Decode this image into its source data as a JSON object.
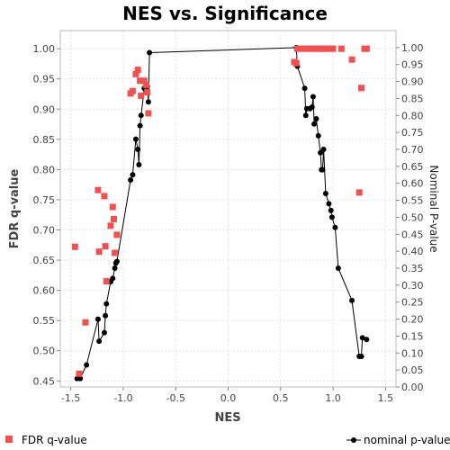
{
  "chart_data": {
    "type": "scatter",
    "title": "NES vs. Significance",
    "xlabel": "NES",
    "ylabel_left": "FDR q-value",
    "ylabel_right": "Nominal P-value",
    "xlim": [
      -1.6,
      1.6
    ],
    "ylim_left": [
      0.44,
      1.03
    ],
    "ylim_right": [
      0.0,
      1.05
    ],
    "x_ticks": [
      "-1.5",
      "-1.0",
      "-0.5",
      "0.0",
      "0.5",
      "1.0",
      "1.5"
    ],
    "y_left_ticks": [
      "0.45",
      "0.50",
      "0.55",
      "0.60",
      "0.65",
      "0.70",
      "0.75",
      "0.80",
      "0.85",
      "0.90",
      "0.95",
      "1.00"
    ],
    "y_right_ticks": [
      "0.00",
      "0.05",
      "0.10",
      "0.15",
      "0.20",
      "0.25",
      "0.30",
      "0.35",
      "0.40",
      "0.45",
      "0.50",
      "0.55",
      "0.60",
      "0.65",
      "0.70",
      "0.75",
      "0.80",
      "0.85",
      "0.90",
      "0.95",
      "1.00"
    ],
    "grid": true,
    "legend": "bottom",
    "series": [
      {
        "name": "FDR q-value",
        "axis": "left",
        "color": "#f05050",
        "marker": "square",
        "points": [
          [
            -1.46,
            0.672
          ],
          [
            -1.42,
            0.462
          ],
          [
            -1.36,
            0.547
          ],
          [
            -1.24,
            0.766
          ],
          [
            -1.23,
            0.664
          ],
          [
            -1.18,
            0.756
          ],
          [
            -1.17,
            0.673
          ],
          [
            -1.16,
            0.615
          ],
          [
            -1.12,
            0.707
          ],
          [
            -1.1,
            0.738
          ],
          [
            -1.09,
            0.718
          ],
          [
            -1.08,
            0.662
          ],
          [
            -1.06,
            0.692
          ],
          [
            -0.93,
            0.926
          ],
          [
            -0.91,
            0.93
          ],
          [
            -0.88,
            0.958
          ],
          [
            -0.86,
            0.965
          ],
          [
            -0.84,
            0.947
          ],
          [
            -0.83,
            0.922
          ],
          [
            -0.8,
            0.947
          ],
          [
            -0.78,
            0.94
          ],
          [
            -0.77,
            0.928
          ],
          [
            -0.76,
            0.893
          ],
          [
            0.63,
            0.978
          ],
          [
            0.65,
            0.976
          ],
          [
            0.66,
            1.0
          ],
          [
            0.7,
            1.0
          ],
          [
            0.74,
            1.0
          ],
          [
            0.78,
            1.0
          ],
          [
            0.8,
            1.0
          ],
          [
            0.84,
            1.0
          ],
          [
            0.86,
            1.0
          ],
          [
            0.88,
            1.0
          ],
          [
            0.9,
            1.0
          ],
          [
            0.93,
            1.0
          ],
          [
            0.96,
            1.0
          ],
          [
            0.98,
            1.0
          ],
          [
            1.0,
            1.0
          ],
          [
            1.08,
            1.0
          ],
          [
            1.18,
            0.982
          ],
          [
            1.25,
            0.762
          ],
          [
            1.27,
            0.935
          ],
          [
            1.3,
            1.0
          ],
          [
            1.32,
            1.0
          ]
        ]
      },
      {
        "name": "nominal p-value",
        "axis": "right",
        "color": "#000000",
        "marker": "circle",
        "points": [
          [
            -1.44,
            0.025
          ],
          [
            -1.41,
            0.025
          ],
          [
            -1.35,
            0.065
          ],
          [
            -1.24,
            0.2
          ],
          [
            -1.23,
            0.135
          ],
          [
            -1.18,
            0.16
          ],
          [
            -1.17,
            0.21
          ],
          [
            -1.16,
            0.245
          ],
          [
            -1.12,
            0.31
          ],
          [
            -1.1,
            0.32
          ],
          [
            -1.08,
            0.35
          ],
          [
            -1.07,
            0.365
          ],
          [
            -1.06,
            0.37
          ],
          [
            -0.93,
            0.61
          ],
          [
            -0.91,
            0.625
          ],
          [
            -0.88,
            0.73
          ],
          [
            -0.86,
            0.7
          ],
          [
            -0.85,
            0.655
          ],
          [
            -0.84,
            0.77
          ],
          [
            -0.83,
            0.8
          ],
          [
            -0.8,
            0.88
          ],
          [
            -0.77,
            0.885
          ],
          [
            -0.76,
            0.84
          ],
          [
            -0.75,
            0.985
          ],
          [
            0.65,
            1.0
          ],
          [
            0.66,
            0.945
          ],
          [
            0.73,
            0.88
          ],
          [
            0.74,
            0.8
          ],
          [
            0.75,
            0.82
          ],
          [
            0.78,
            0.82
          ],
          [
            0.8,
            0.825
          ],
          [
            0.81,
            0.855
          ],
          [
            0.82,
            0.775
          ],
          [
            0.84,
            0.79
          ],
          [
            0.86,
            0.74
          ],
          [
            0.88,
            0.69
          ],
          [
            0.89,
            0.64
          ],
          [
            0.9,
            0.64
          ],
          [
            0.91,
            0.7
          ],
          [
            0.93,
            0.57
          ],
          [
            0.96,
            0.54
          ],
          [
            0.98,
            0.52
          ],
          [
            0.99,
            0.5
          ],
          [
            1.02,
            0.47
          ],
          [
            1.05,
            0.35
          ],
          [
            1.18,
            0.255
          ],
          [
            1.25,
            0.09
          ],
          [
            1.27,
            0.09
          ],
          [
            1.28,
            0.145
          ],
          [
            1.32,
            0.14
          ]
        ]
      }
    ]
  }
}
